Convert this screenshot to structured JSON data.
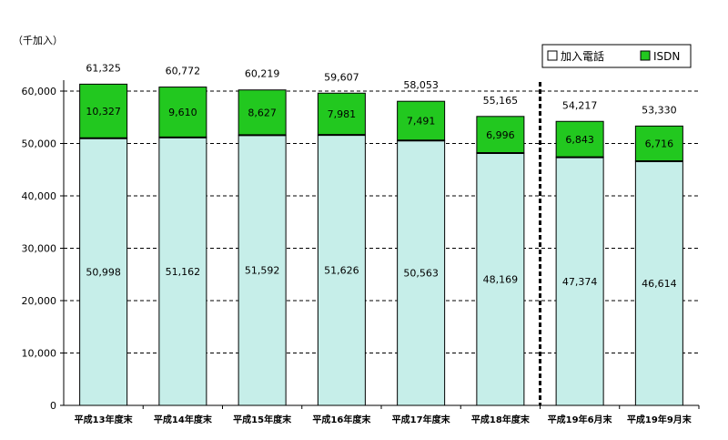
{
  "chart_data": {
    "type": "bar",
    "stacked": true,
    "unit_label": "（千加入）",
    "categories": [
      "平成13年度末",
      "平成14年度末",
      "平成15年度末",
      "平成16年度末",
      "平成17年度末",
      "平成18年度末",
      "平成19年6月末",
      "平成19年9月末"
    ],
    "series": [
      {
        "name": "加入電話",
        "values": [
          50998,
          51162,
          51592,
          51626,
          50563,
          48169,
          47374,
          46614
        ],
        "color": "#c6eee9"
      },
      {
        "name": "ISDN",
        "values": [
          10327,
          9610,
          8627,
          7981,
          7491,
          6996,
          6843,
          6716
        ],
        "color": "#22c81f"
      }
    ],
    "totals": [
      61325,
      60772,
      60219,
      59607,
      58053,
      55165,
      54217,
      53330
    ],
    "value_labels": {
      "加入電話": [
        "50,998",
        "51,162",
        "51,592",
        "51,626",
        "50,563",
        "48,169",
        "47,374",
        "46,614"
      ],
      "ISDN": [
        "10,327",
        "9,610",
        "8,627",
        "7,981",
        "7,491",
        "6,996",
        "6,843",
        "6,716"
      ],
      "total": [
        "61,325",
        "60,772",
        "60,219",
        "59,607",
        "58,053",
        "55,165",
        "54,217",
        "53,330"
      ]
    },
    "yticks": [
      "0",
      "10,000",
      "20,000",
      "30,000",
      "40,000",
      "50,000",
      "60,000"
    ],
    "ylim": [
      0,
      70000
    ],
    "grid": "dashed horizontal",
    "divider_after_category": "平成18年度末",
    "legend": {
      "position": "top-right",
      "items": [
        "加入電話",
        "ISDN"
      ]
    }
  }
}
